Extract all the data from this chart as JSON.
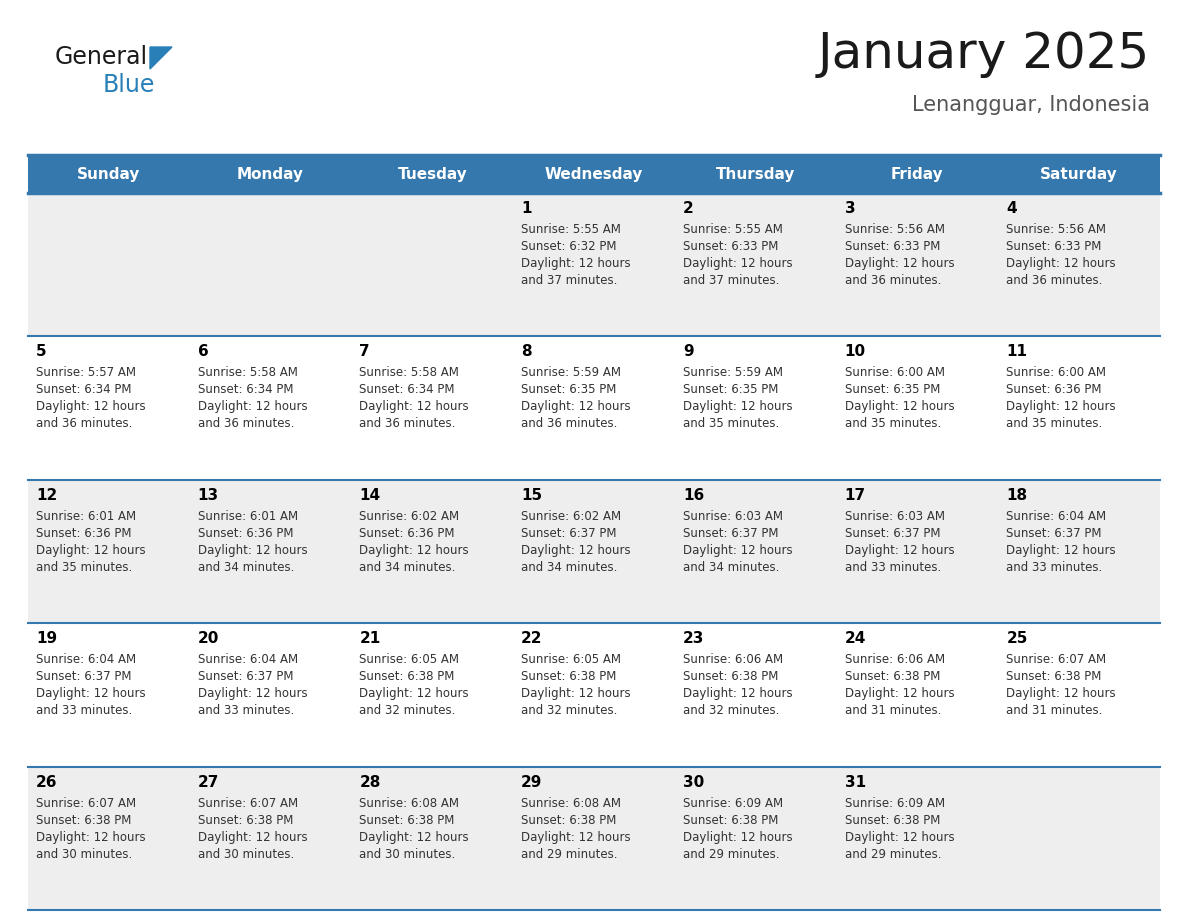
{
  "title": "January 2025",
  "subtitle": "Lenangguar, Indonesia",
  "header_bg_color": "#3578ae",
  "header_text_color": "#ffffff",
  "weekdays": [
    "Sunday",
    "Monday",
    "Tuesday",
    "Wednesday",
    "Thursday",
    "Friday",
    "Saturday"
  ],
  "row_bg_colors": [
    "#eeeeee",
    "#ffffff",
    "#eeeeee",
    "#ffffff",
    "#eeeeee"
  ],
  "cell_border_color": "#3578ae",
  "day_number_color": "#000000",
  "cell_text_color": "#333333",
  "logo_general_color": "#1a1a1a",
  "logo_blue_color": "#2980b9",
  "logo_triangle_color": "#2980b9",
  "days": [
    {
      "day": 1,
      "col": 3,
      "row": 0,
      "sunrise": "5:55 AM",
      "sunset": "6:32 PM",
      "daylight_hours": 12,
      "daylight_minutes": 37
    },
    {
      "day": 2,
      "col": 4,
      "row": 0,
      "sunrise": "5:55 AM",
      "sunset": "6:33 PM",
      "daylight_hours": 12,
      "daylight_minutes": 37
    },
    {
      "day": 3,
      "col": 5,
      "row": 0,
      "sunrise": "5:56 AM",
      "sunset": "6:33 PM",
      "daylight_hours": 12,
      "daylight_minutes": 36
    },
    {
      "day": 4,
      "col": 6,
      "row": 0,
      "sunrise": "5:56 AM",
      "sunset": "6:33 PM",
      "daylight_hours": 12,
      "daylight_minutes": 36
    },
    {
      "day": 5,
      "col": 0,
      "row": 1,
      "sunrise": "5:57 AM",
      "sunset": "6:34 PM",
      "daylight_hours": 12,
      "daylight_minutes": 36
    },
    {
      "day": 6,
      "col": 1,
      "row": 1,
      "sunrise": "5:58 AM",
      "sunset": "6:34 PM",
      "daylight_hours": 12,
      "daylight_minutes": 36
    },
    {
      "day": 7,
      "col": 2,
      "row": 1,
      "sunrise": "5:58 AM",
      "sunset": "6:34 PM",
      "daylight_hours": 12,
      "daylight_minutes": 36
    },
    {
      "day": 8,
      "col": 3,
      "row": 1,
      "sunrise": "5:59 AM",
      "sunset": "6:35 PM",
      "daylight_hours": 12,
      "daylight_minutes": 36
    },
    {
      "day": 9,
      "col": 4,
      "row": 1,
      "sunrise": "5:59 AM",
      "sunset": "6:35 PM",
      "daylight_hours": 12,
      "daylight_minutes": 35
    },
    {
      "day": 10,
      "col": 5,
      "row": 1,
      "sunrise": "6:00 AM",
      "sunset": "6:35 PM",
      "daylight_hours": 12,
      "daylight_minutes": 35
    },
    {
      "day": 11,
      "col": 6,
      "row": 1,
      "sunrise": "6:00 AM",
      "sunset": "6:36 PM",
      "daylight_hours": 12,
      "daylight_minutes": 35
    },
    {
      "day": 12,
      "col": 0,
      "row": 2,
      "sunrise": "6:01 AM",
      "sunset": "6:36 PM",
      "daylight_hours": 12,
      "daylight_minutes": 35
    },
    {
      "day": 13,
      "col": 1,
      "row": 2,
      "sunrise": "6:01 AM",
      "sunset": "6:36 PM",
      "daylight_hours": 12,
      "daylight_minutes": 34
    },
    {
      "day": 14,
      "col": 2,
      "row": 2,
      "sunrise": "6:02 AM",
      "sunset": "6:36 PM",
      "daylight_hours": 12,
      "daylight_minutes": 34
    },
    {
      "day": 15,
      "col": 3,
      "row": 2,
      "sunrise": "6:02 AM",
      "sunset": "6:37 PM",
      "daylight_hours": 12,
      "daylight_minutes": 34
    },
    {
      "day": 16,
      "col": 4,
      "row": 2,
      "sunrise": "6:03 AM",
      "sunset": "6:37 PM",
      "daylight_hours": 12,
      "daylight_minutes": 34
    },
    {
      "day": 17,
      "col": 5,
      "row": 2,
      "sunrise": "6:03 AM",
      "sunset": "6:37 PM",
      "daylight_hours": 12,
      "daylight_minutes": 33
    },
    {
      "day": 18,
      "col": 6,
      "row": 2,
      "sunrise": "6:04 AM",
      "sunset": "6:37 PM",
      "daylight_hours": 12,
      "daylight_minutes": 33
    },
    {
      "day": 19,
      "col": 0,
      "row": 3,
      "sunrise": "6:04 AM",
      "sunset": "6:37 PM",
      "daylight_hours": 12,
      "daylight_minutes": 33
    },
    {
      "day": 20,
      "col": 1,
      "row": 3,
      "sunrise": "6:04 AM",
      "sunset": "6:37 PM",
      "daylight_hours": 12,
      "daylight_minutes": 33
    },
    {
      "day": 21,
      "col": 2,
      "row": 3,
      "sunrise": "6:05 AM",
      "sunset": "6:38 PM",
      "daylight_hours": 12,
      "daylight_minutes": 32
    },
    {
      "day": 22,
      "col": 3,
      "row": 3,
      "sunrise": "6:05 AM",
      "sunset": "6:38 PM",
      "daylight_hours": 12,
      "daylight_minutes": 32
    },
    {
      "day": 23,
      "col": 4,
      "row": 3,
      "sunrise": "6:06 AM",
      "sunset": "6:38 PM",
      "daylight_hours": 12,
      "daylight_minutes": 32
    },
    {
      "day": 24,
      "col": 5,
      "row": 3,
      "sunrise": "6:06 AM",
      "sunset": "6:38 PM",
      "daylight_hours": 12,
      "daylight_minutes": 31
    },
    {
      "day": 25,
      "col": 6,
      "row": 3,
      "sunrise": "6:07 AM",
      "sunset": "6:38 PM",
      "daylight_hours": 12,
      "daylight_minutes": 31
    },
    {
      "day": 26,
      "col": 0,
      "row": 4,
      "sunrise": "6:07 AM",
      "sunset": "6:38 PM",
      "daylight_hours": 12,
      "daylight_minutes": 30
    },
    {
      "day": 27,
      "col": 1,
      "row": 4,
      "sunrise": "6:07 AM",
      "sunset": "6:38 PM",
      "daylight_hours": 12,
      "daylight_minutes": 30
    },
    {
      "day": 28,
      "col": 2,
      "row": 4,
      "sunrise": "6:08 AM",
      "sunset": "6:38 PM",
      "daylight_hours": 12,
      "daylight_minutes": 30
    },
    {
      "day": 29,
      "col": 3,
      "row": 4,
      "sunrise": "6:08 AM",
      "sunset": "6:38 PM",
      "daylight_hours": 12,
      "daylight_minutes": 29
    },
    {
      "day": 30,
      "col": 4,
      "row": 4,
      "sunrise": "6:09 AM",
      "sunset": "6:38 PM",
      "daylight_hours": 12,
      "daylight_minutes": 29
    },
    {
      "day": 31,
      "col": 5,
      "row": 4,
      "sunrise": "6:09 AM",
      "sunset": "6:38 PM",
      "daylight_hours": 12,
      "daylight_minutes": 29
    }
  ]
}
